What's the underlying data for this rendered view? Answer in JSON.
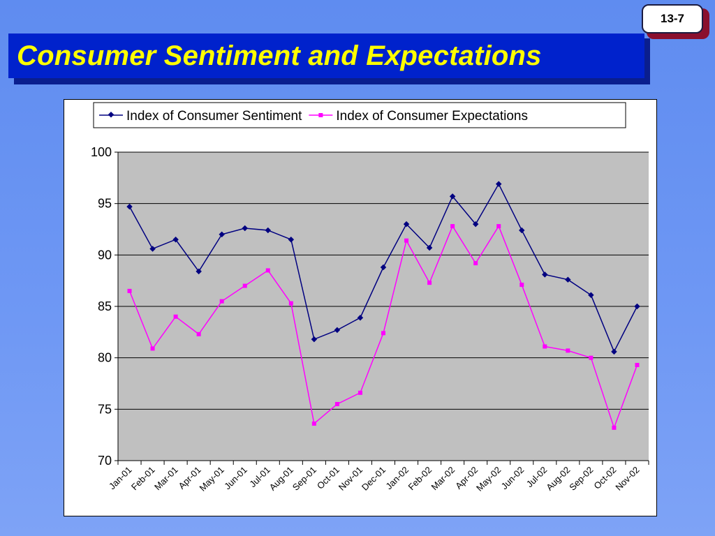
{
  "slide": {
    "page_number": "13-7",
    "title": "Consumer Sentiment and Expectations"
  },
  "colors": {
    "background": "#6f98f4",
    "title_box": "#0022cc",
    "title_text": "#ffff00",
    "plot_area": "#c0c0c0",
    "sentiment": "#000080",
    "expectations": "#ff00ff"
  },
  "chart_data": {
    "type": "line",
    "categories": [
      "Jan-01",
      "Feb-01",
      "Mar-01",
      "Apr-01",
      "May-01",
      "Jun-01",
      "Jul-01",
      "Aug-01",
      "Sep-01",
      "Oct-01",
      "Nov-01",
      "Dec-01",
      "Jan-02",
      "Feb-02",
      "Mar-02",
      "Apr-02",
      "May-02",
      "Jun-02",
      "Jul-02",
      "Aug-02",
      "Sep-02",
      "Oct-02",
      "Nov-02"
    ],
    "series": [
      {
        "name": "Index of Consumer Sentiment",
        "color": "#000080",
        "marker": "diamond",
        "values": [
          94.7,
          90.6,
          91.5,
          88.4,
          92.0,
          92.6,
          92.4,
          91.5,
          81.8,
          82.7,
          83.9,
          88.8,
          93.0,
          90.7,
          95.7,
          93.0,
          96.9,
          92.4,
          88.1,
          87.6,
          86.1,
          80.6,
          85.0
        ]
      },
      {
        "name": "Index of Consumer Expectations",
        "color": "#ff00ff",
        "marker": "square",
        "values": [
          86.5,
          80.9,
          84.0,
          82.3,
          85.5,
          87.0,
          88.5,
          85.3,
          73.6,
          75.5,
          76.6,
          82.4,
          91.4,
          87.3,
          92.8,
          89.2,
          92.8,
          87.1,
          81.1,
          80.7,
          80.0,
          73.2,
          79.3
        ]
      }
    ],
    "ylim": [
      70,
      100
    ],
    "yticks": [
      70,
      75,
      80,
      85,
      90,
      95,
      100
    ],
    "grid": true,
    "legend_position": "top"
  }
}
